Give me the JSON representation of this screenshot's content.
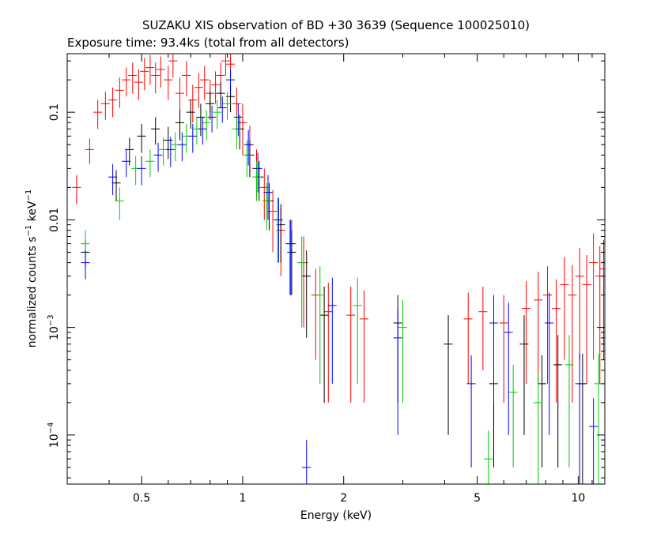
{
  "chart_data": {
    "type": "scatter",
    "title": "SUZAKU XIS observation of BD +30 3639 (Sequence 100025010)",
    "subtitle": "Exposure time: 93.4ks (total from all detectors)",
    "xlabel": "Energy (keV)",
    "ylabel_main": "normalized counts s",
    "ylabel_sup1": "−1",
    "ylabel_mid": " keV",
    "ylabel_sup2": "−1",
    "xscale": "log",
    "yscale": "log",
    "xlim": [
      0.3,
      12
    ],
    "ylim": [
      3.5e-05,
      0.35
    ],
    "x_ticks": [
      {
        "value": 0.5,
        "label": "0.5"
      },
      {
        "value": 1,
        "label": "1"
      },
      {
        "value": 2,
        "label": "2"
      },
      {
        "value": 5,
        "label": "5"
      },
      {
        "value": 10,
        "label": "10"
      }
    ],
    "y_ticks": [
      {
        "value": 0.1,
        "base": "0.1",
        "exp": ""
      },
      {
        "value": 0.01,
        "base": "0.01",
        "exp": ""
      },
      {
        "value": 0.001,
        "base": "10",
        "exp": "−3"
      },
      {
        "value": 0.0001,
        "base": "10",
        "exp": "−4"
      }
    ],
    "grid": false,
    "series": [
      {
        "color": "#ff0000",
        "points": [
          [
            0.32,
            0.02,
            0.006
          ],
          [
            0.35,
            0.045,
            0.012
          ],
          [
            0.37,
            0.1,
            0.03
          ],
          [
            0.39,
            0.12,
            0.035
          ],
          [
            0.41,
            0.13,
            0.04
          ],
          [
            0.43,
            0.16,
            0.05
          ],
          [
            0.45,
            0.2,
            0.06
          ],
          [
            0.47,
            0.22,
            0.07
          ],
          [
            0.49,
            0.19,
            0.06
          ],
          [
            0.51,
            0.24,
            0.08
          ],
          [
            0.53,
            0.26,
            0.08
          ],
          [
            0.55,
            0.22,
            0.07
          ],
          [
            0.57,
            0.25,
            0.08
          ],
          [
            0.6,
            0.2,
            0.07
          ],
          [
            0.62,
            0.3,
            0.09
          ],
          [
            0.65,
            0.15,
            0.06
          ],
          [
            0.68,
            0.22,
            0.08
          ],
          [
            0.71,
            0.13,
            0.05
          ],
          [
            0.74,
            0.17,
            0.06
          ],
          [
            0.77,
            0.2,
            0.07
          ],
          [
            0.8,
            0.15,
            0.05
          ],
          [
            0.83,
            0.18,
            0.06
          ],
          [
            0.86,
            0.22,
            0.07
          ],
          [
            0.89,
            0.3,
            0.08
          ],
          [
            0.92,
            0.28,
            0.07
          ],
          [
            0.96,
            0.12,
            0.05
          ],
          [
            1.0,
            0.08,
            0.04
          ],
          [
            1.05,
            0.05,
            0.025
          ],
          [
            1.1,
            0.03,
            0.015
          ],
          [
            1.16,
            0.02,
            0.01
          ],
          [
            1.23,
            0.012,
            0.007
          ],
          [
            1.3,
            0.008,
            0.005
          ],
          [
            1.4,
            0.006,
            0.004
          ],
          [
            1.52,
            0.004,
            0.003
          ],
          [
            1.65,
            0.002,
            0.0015
          ],
          [
            1.8,
            0.0014,
            0.0012
          ],
          [
            2.1,
            0.0013,
            0.0011
          ],
          [
            2.3,
            0.0012,
            0.001
          ],
          [
            4.7,
            0.0012,
            0.0009
          ],
          [
            5.2,
            0.0014,
            0.001
          ],
          [
            6.0,
            0.0011,
            0.0009
          ],
          [
            7.0,
            0.0015,
            0.0012
          ],
          [
            7.6,
            0.0018,
            0.0015
          ],
          [
            8.1,
            0.002,
            0.0017
          ],
          [
            8.6,
            0.0015,
            0.0013
          ],
          [
            9.1,
            0.0025,
            0.002
          ],
          [
            9.6,
            0.002,
            0.0018
          ],
          [
            10.1,
            0.003,
            0.0025
          ],
          [
            10.6,
            0.0025,
            0.0022
          ],
          [
            11.1,
            0.004,
            0.0035
          ],
          [
            11.6,
            0.003,
            0.0027
          ],
          [
            11.9,
            0.0035,
            0.003
          ]
        ]
      },
      {
        "color": "#000000",
        "points": [
          [
            0.34,
            0.005,
            0.0015
          ],
          [
            0.42,
            0.022,
            0.007
          ],
          [
            0.46,
            0.045,
            0.013
          ],
          [
            0.5,
            0.06,
            0.018
          ],
          [
            0.55,
            0.07,
            0.02
          ],
          [
            0.6,
            0.055,
            0.018
          ],
          [
            0.65,
            0.08,
            0.025
          ],
          [
            0.7,
            0.1,
            0.03
          ],
          [
            0.75,
            0.09,
            0.03
          ],
          [
            0.8,
            0.12,
            0.035
          ],
          [
            0.86,
            0.15,
            0.04
          ],
          [
            0.92,
            0.14,
            0.04
          ],
          [
            0.98,
            0.07,
            0.025
          ],
          [
            1.05,
            0.04,
            0.015
          ],
          [
            1.12,
            0.025,
            0.01
          ],
          [
            1.2,
            0.015,
            0.007
          ],
          [
            1.3,
            0.009,
            0.005
          ],
          [
            1.4,
            0.005,
            0.003
          ],
          [
            1.55,
            0.003,
            0.0022
          ],
          [
            1.75,
            0.0013,
            0.0011
          ],
          [
            2.9,
            0.0011,
            0.0009
          ],
          [
            4.1,
            0.0007,
            0.0006
          ],
          [
            5.6,
            0.0003,
            0.00025
          ],
          [
            6.9,
            0.0007,
            0.0006
          ],
          [
            7.8,
            0.0003,
            0.00025
          ],
          [
            8.7,
            0.00045,
            0.0004
          ],
          [
            10.3,
            0.0003,
            0.00027
          ]
        ]
      },
      {
        "color": "#00cc00",
        "points": [
          [
            0.34,
            0.006,
            0.002
          ],
          [
            0.43,
            0.015,
            0.005
          ],
          [
            0.48,
            0.03,
            0.009
          ],
          [
            0.53,
            0.035,
            0.01
          ],
          [
            0.58,
            0.045,
            0.013
          ],
          [
            0.63,
            0.05,
            0.015
          ],
          [
            0.68,
            0.06,
            0.018
          ],
          [
            0.73,
            0.07,
            0.02
          ],
          [
            0.78,
            0.08,
            0.025
          ],
          [
            0.84,
            0.1,
            0.03
          ],
          [
            0.9,
            0.12,
            0.035
          ],
          [
            0.96,
            0.07,
            0.025
          ],
          [
            1.03,
            0.04,
            0.015
          ],
          [
            1.1,
            0.025,
            0.01
          ],
          [
            1.18,
            0.015,
            0.007
          ],
          [
            1.27,
            0.01,
            0.006
          ],
          [
            1.38,
            0.006,
            0.004
          ],
          [
            1.5,
            0.004,
            0.003
          ],
          [
            1.7,
            0.002,
            0.0017
          ],
          [
            2.2,
            0.0016,
            0.0013
          ],
          [
            3.0,
            0.001,
            0.0008
          ],
          [
            5.4,
            6e-05,
            5e-05
          ],
          [
            6.4,
            0.00025,
            0.0002
          ],
          [
            7.6,
            0.0002,
            0.00018
          ],
          [
            9.4,
            0.00045,
            0.0004
          ],
          [
            11.5,
            0.0003,
            0.00027
          ]
        ]
      },
      {
        "color": "#0000ff",
        "points": [
          [
            0.34,
            0.004,
            0.0012
          ],
          [
            0.41,
            0.025,
            0.008
          ],
          [
            0.45,
            0.035,
            0.01
          ],
          [
            0.5,
            0.03,
            0.009
          ],
          [
            0.56,
            0.04,
            0.012
          ],
          [
            0.61,
            0.045,
            0.014
          ],
          [
            0.66,
            0.05,
            0.015
          ],
          [
            0.71,
            0.06,
            0.018
          ],
          [
            0.76,
            0.07,
            0.02
          ],
          [
            0.81,
            0.09,
            0.025
          ],
          [
            0.87,
            0.11,
            0.03
          ],
          [
            0.92,
            0.2,
            0.05
          ],
          [
            0.97,
            0.09,
            0.03
          ],
          [
            1.04,
            0.05,
            0.018
          ],
          [
            1.11,
            0.03,
            0.012
          ],
          [
            1.19,
            0.018,
            0.008
          ],
          [
            1.28,
            0.01,
            0.006
          ],
          [
            1.39,
            0.006,
            0.004
          ],
          [
            1.55,
            5e-05,
            4e-05
          ],
          [
            1.85,
            0.0016,
            0.0013
          ],
          [
            2.9,
            0.0008,
            0.0007
          ],
          [
            4.8,
            0.0003,
            0.00025
          ],
          [
            5.6,
            0.0011,
            0.0009
          ],
          [
            6.2,
            0.0009,
            0.0008
          ],
          [
            8.2,
            0.0011,
            0.001
          ],
          [
            10.1,
            0.0003,
            0.00027
          ],
          [
            11.1,
            0.00012,
            0.0001
          ]
        ]
      }
    ]
  }
}
